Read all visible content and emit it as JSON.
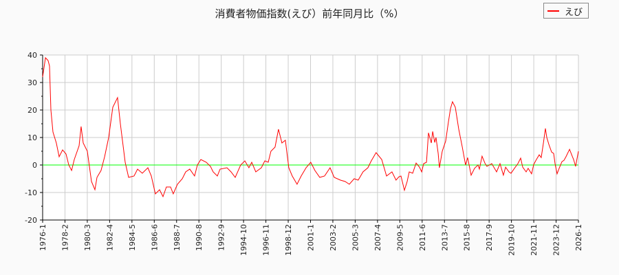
{
  "chart_data": {
    "type": "line",
    "title": "消費者物価指数(えび）前年同月比（%）",
    "xlabel": "",
    "ylabel": "",
    "ylim": [
      -20,
      40
    ],
    "yticks": [
      -20,
      -10,
      0,
      10,
      20,
      30,
      40
    ],
    "xlim": [
      "1976-1",
      "2026-1"
    ],
    "xticks": [
      "1976-1",
      "1978-2",
      "1980-3",
      "1982-4",
      "1984-5",
      "1986-6",
      "1988-7",
      "1990-8",
      "1992-9",
      "1994-10",
      "1996-11",
      "1998-12",
      "2001-1",
      "2003-2",
      "2005-3",
      "2007-4",
      "2009-5",
      "2011-6",
      "2013-7",
      "2015-8",
      "2017-9",
      "2019-10",
      "2021-11",
      "2023-12",
      "2026-1"
    ],
    "grid": true,
    "legend_position": "top-right",
    "reference_line": {
      "y": 0,
      "color": "#00ff00"
    },
    "series": [
      {
        "name": "えび",
        "color": "#ff0000",
        "points": [
          [
            1976.0,
            32
          ],
          [
            1976.26,
            39
          ],
          [
            1976.51,
            38
          ],
          [
            1976.64,
            36
          ],
          [
            1976.77,
            20
          ],
          [
            1976.96,
            12
          ],
          [
            1977.28,
            8
          ],
          [
            1977.54,
            3
          ],
          [
            1977.86,
            5.5
          ],
          [
            1978.18,
            4
          ],
          [
            1978.44,
            0
          ],
          [
            1978.7,
            -2
          ],
          [
            1978.95,
            2
          ],
          [
            1979.4,
            7
          ],
          [
            1979.59,
            14
          ],
          [
            1979.79,
            8
          ],
          [
            1980.17,
            5
          ],
          [
            1980.56,
            -6
          ],
          [
            1980.88,
            -9
          ],
          [
            1981.07,
            -4.5
          ],
          [
            1981.45,
            -2
          ],
          [
            1981.78,
            3
          ],
          [
            1982.16,
            10
          ],
          [
            1982.55,
            21
          ],
          [
            1982.99,
            24.5
          ],
          [
            1983.25,
            15
          ],
          [
            1983.7,
            1
          ],
          [
            1984.02,
            -4.5
          ],
          [
            1984.53,
            -4
          ],
          [
            1984.86,
            -1.5
          ],
          [
            1985.3,
            -3
          ],
          [
            1985.82,
            -1
          ],
          [
            1986.14,
            -4
          ],
          [
            1986.52,
            -10.5
          ],
          [
            1986.91,
            -9
          ],
          [
            1987.23,
            -11.5
          ],
          [
            1987.55,
            -8
          ],
          [
            1987.94,
            -8
          ],
          [
            1988.19,
            -10.5
          ],
          [
            1988.58,
            -7
          ],
          [
            1989.03,
            -5
          ],
          [
            1989.35,
            -2.5
          ],
          [
            1989.73,
            -1.5
          ],
          [
            1990.18,
            -4
          ],
          [
            1990.44,
            0
          ],
          [
            1990.76,
            2
          ],
          [
            1991.27,
            1
          ],
          [
            1991.66,
            -0.5
          ],
          [
            1991.91,
            -2.5
          ],
          [
            1992.3,
            -4
          ],
          [
            1992.56,
            -1.5
          ],
          [
            1993.2,
            -1
          ],
          [
            1993.58,
            -2.5
          ],
          [
            1993.97,
            -4.5
          ],
          [
            1994.48,
            0
          ],
          [
            1994.87,
            1.5
          ],
          [
            1995.25,
            -1
          ],
          [
            1995.51,
            1
          ],
          [
            1995.89,
            -2.5
          ],
          [
            1996.41,
            -1
          ],
          [
            1996.73,
            1.5
          ],
          [
            1997.05,
            1
          ],
          [
            1997.3,
            5
          ],
          [
            1997.69,
            6.5
          ],
          [
            1998.01,
            13
          ],
          [
            1998.33,
            8
          ],
          [
            1998.65,
            9
          ],
          [
            1998.97,
            -1
          ],
          [
            1999.29,
            -4
          ],
          [
            1999.74,
            -7
          ],
          [
            2000.13,
            -4
          ],
          [
            2000.58,
            -1
          ],
          [
            2001.02,
            1
          ],
          [
            2001.41,
            -2
          ],
          [
            2001.86,
            -4.5
          ],
          [
            2002.31,
            -4
          ],
          [
            2002.82,
            -1
          ],
          [
            2003.21,
            -4.5
          ],
          [
            2003.79,
            -5.5
          ],
          [
            2004.23,
            -6
          ],
          [
            2004.62,
            -7
          ],
          [
            2005.07,
            -5
          ],
          [
            2005.45,
            -5.5
          ],
          [
            2005.9,
            -2.5
          ],
          [
            2006.35,
            -1
          ],
          [
            2006.67,
            1.5
          ],
          [
            2007.12,
            4.5
          ],
          [
            2007.64,
            2
          ],
          [
            2008.09,
            -4
          ],
          [
            2008.6,
            -2.5
          ],
          [
            2008.98,
            -5.5
          ],
          [
            2009.25,
            -4.3
          ],
          [
            2009.44,
            -4
          ],
          [
            2009.76,
            -9.2
          ],
          [
            2010.02,
            -6
          ],
          [
            2010.21,
            -2.5
          ],
          [
            2010.53,
            -3
          ],
          [
            2010.85,
            0.7
          ],
          [
            2011.17,
            -0.8
          ],
          [
            2011.37,
            -2.5
          ],
          [
            2011.56,
            0.5
          ],
          [
            2011.82,
            1
          ],
          [
            2012.01,
            11.7
          ],
          [
            2012.27,
            8
          ],
          [
            2012.4,
            12.2
          ],
          [
            2012.59,
            8.2
          ],
          [
            2012.71,
            10
          ],
          [
            2012.91,
            4.2
          ],
          [
            2013.03,
            -1
          ],
          [
            2013.29,
            5
          ],
          [
            2013.61,
            8.7
          ],
          [
            2013.87,
            15.7
          ],
          [
            2014.06,
            20.5
          ],
          [
            2014.25,
            23
          ],
          [
            2014.51,
            21
          ],
          [
            2014.83,
            13
          ],
          [
            2015.15,
            6.7
          ],
          [
            2015.47,
            0
          ],
          [
            2015.66,
            2.7
          ],
          [
            2015.99,
            -3.7
          ],
          [
            2016.31,
            -1.2
          ],
          [
            2016.63,
            0
          ],
          [
            2016.76,
            -1.5
          ],
          [
            2017.01,
            3.2
          ],
          [
            2017.27,
            0.7
          ],
          [
            2017.46,
            -0.5
          ],
          [
            2017.91,
            0.5
          ],
          [
            2018.36,
            -2.5
          ],
          [
            2018.68,
            0.5
          ],
          [
            2019.0,
            -3.7
          ],
          [
            2019.2,
            -0.8
          ],
          [
            2019.52,
            -2.5
          ],
          [
            2019.71,
            -3
          ],
          [
            2020.03,
            -1.2
          ],
          [
            2020.35,
            0.5
          ],
          [
            2020.61,
            2.5
          ],
          [
            2020.8,
            -0.8
          ],
          [
            2021.12,
            -2.5
          ],
          [
            2021.31,
            -1.2
          ],
          [
            2021.63,
            -3.2
          ],
          [
            2021.83,
            0.2
          ],
          [
            2022.08,
            2
          ],
          [
            2022.34,
            3.7
          ],
          [
            2022.53,
            2.7
          ],
          [
            2022.73,
            8
          ],
          [
            2022.92,
            13.3
          ],
          [
            2023.05,
            10
          ],
          [
            2023.24,
            7.5
          ],
          [
            2023.5,
            4.7
          ],
          [
            2023.69,
            4.2
          ],
          [
            2023.82,
            0.5
          ],
          [
            2024.01,
            -3.2
          ],
          [
            2024.2,
            -1.2
          ],
          [
            2024.46,
            1.2
          ],
          [
            2024.65,
            1.7
          ],
          [
            2024.84,
            3
          ],
          [
            2025.17,
            5.7
          ],
          [
            2025.42,
            3.2
          ],
          [
            2025.55,
            2
          ],
          [
            2025.74,
            -0.5
          ],
          [
            2026.0,
            5
          ]
        ]
      }
    ]
  }
}
